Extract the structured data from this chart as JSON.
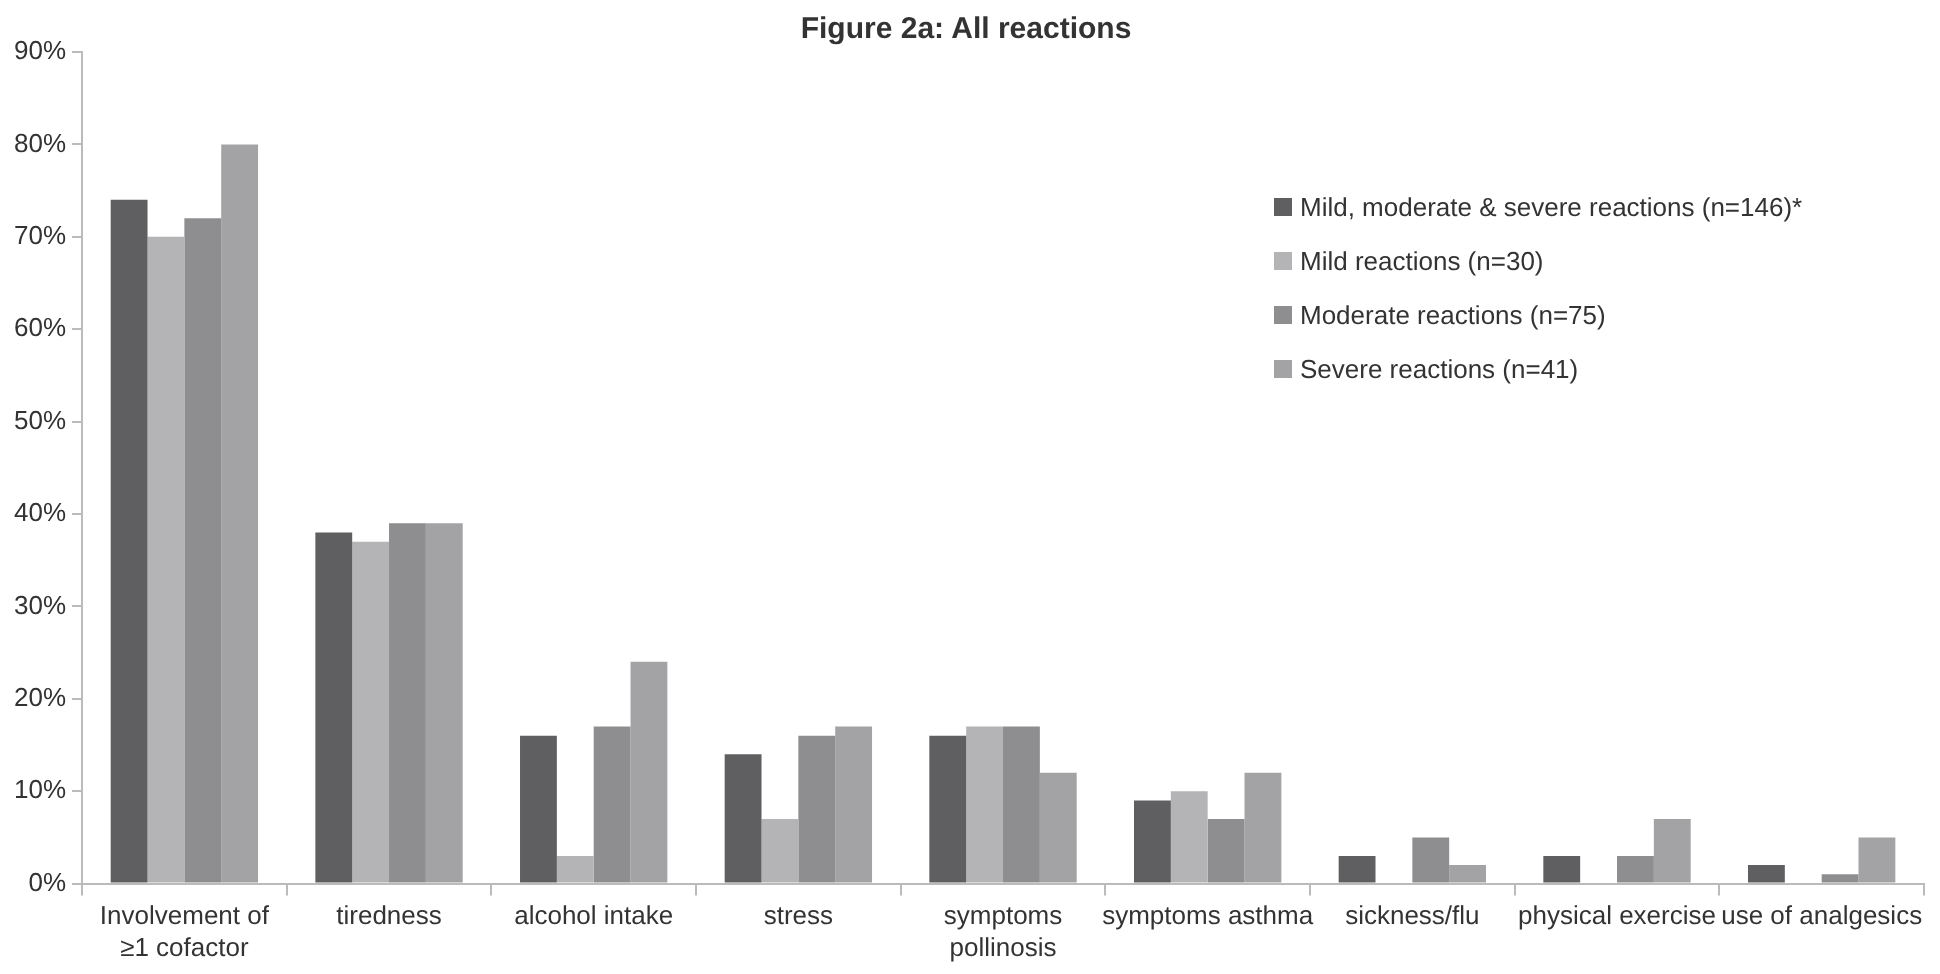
{
  "chart_data": {
    "type": "bar",
    "title": "Figure 2a: All reactions",
    "categories": [
      "Involvement of ≥1 cofactor",
      "tiredness",
      "alcohol intake",
      "stress",
      "symptoms pollinosis",
      "symptoms asthma",
      "sickness/flu",
      "physical exercise",
      "use of analgesics"
    ],
    "series": [
      {
        "name": "Mild, moderate & severe reactions (n=146)*",
        "color": "#5f5f61",
        "values": [
          74,
          38,
          16,
          14,
          16,
          9,
          3,
          3,
          2
        ]
      },
      {
        "name": "Mild reactions (n=30)",
        "color": "#b4b4b6",
        "values": [
          70,
          37,
          3,
          7,
          17,
          10,
          0,
          0,
          0
        ]
      },
      {
        "name": "Moderate reactions (n=75)",
        "color": "#8e8e90",
        "values": [
          72,
          39,
          17,
          16,
          17,
          7,
          5,
          3,
          1
        ]
      },
      {
        "name": "Severe reactions (n=41)",
        "color": "#a3a3a5",
        "values": [
          80,
          39,
          24,
          17,
          12,
          12,
          2,
          7,
          5
        ]
      }
    ],
    "ylim": [
      0,
      90
    ],
    "yticks": [
      {
        "value": 0,
        "label": "0%"
      },
      {
        "value": 10,
        "label": "10%"
      },
      {
        "value": 20,
        "label": "20%"
      },
      {
        "value": 30,
        "label": "30%"
      },
      {
        "value": 40,
        "label": "40%"
      },
      {
        "value": 50,
        "label": "50%"
      },
      {
        "value": 60,
        "label": "60%"
      },
      {
        "value": 70,
        "label": "70%"
      },
      {
        "value": 80,
        "label": "80%"
      },
      {
        "value": 90,
        "label": "90%"
      }
    ],
    "grid": false,
    "legend": "right"
  }
}
